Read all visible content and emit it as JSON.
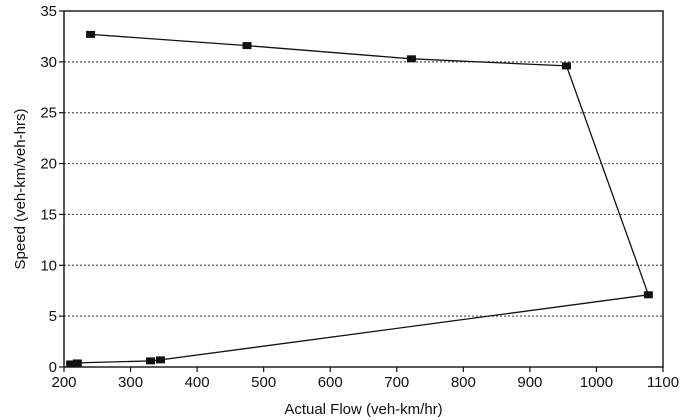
{
  "chart_data": {
    "type": "line",
    "title": "",
    "xlabel": "Actual Flow (veh-km/hr)",
    "ylabel": "Speed (veh-km/veh-hrs)",
    "xlim": [
      200,
      1100
    ],
    "ylim": [
      0,
      35
    ],
    "xticks": [
      200,
      300,
      400,
      500,
      600,
      700,
      800,
      900,
      1000,
      1100
    ],
    "yticks": [
      0,
      5,
      10,
      15,
      20,
      25,
      30,
      35
    ],
    "grid": "horizontal dotted",
    "legend": "none",
    "series": [
      {
        "x": [
          240,
          475,
          722,
          955,
          1078,
          345,
          330,
          220,
          210
        ],
        "y": [
          32.7,
          31.6,
          30.3,
          29.6,
          7.1,
          0.7,
          0.6,
          0.4,
          0.3
        ]
      }
    ],
    "colors": {
      "line": "#111111",
      "marker": "#111111",
      "grid": "#555555"
    }
  }
}
